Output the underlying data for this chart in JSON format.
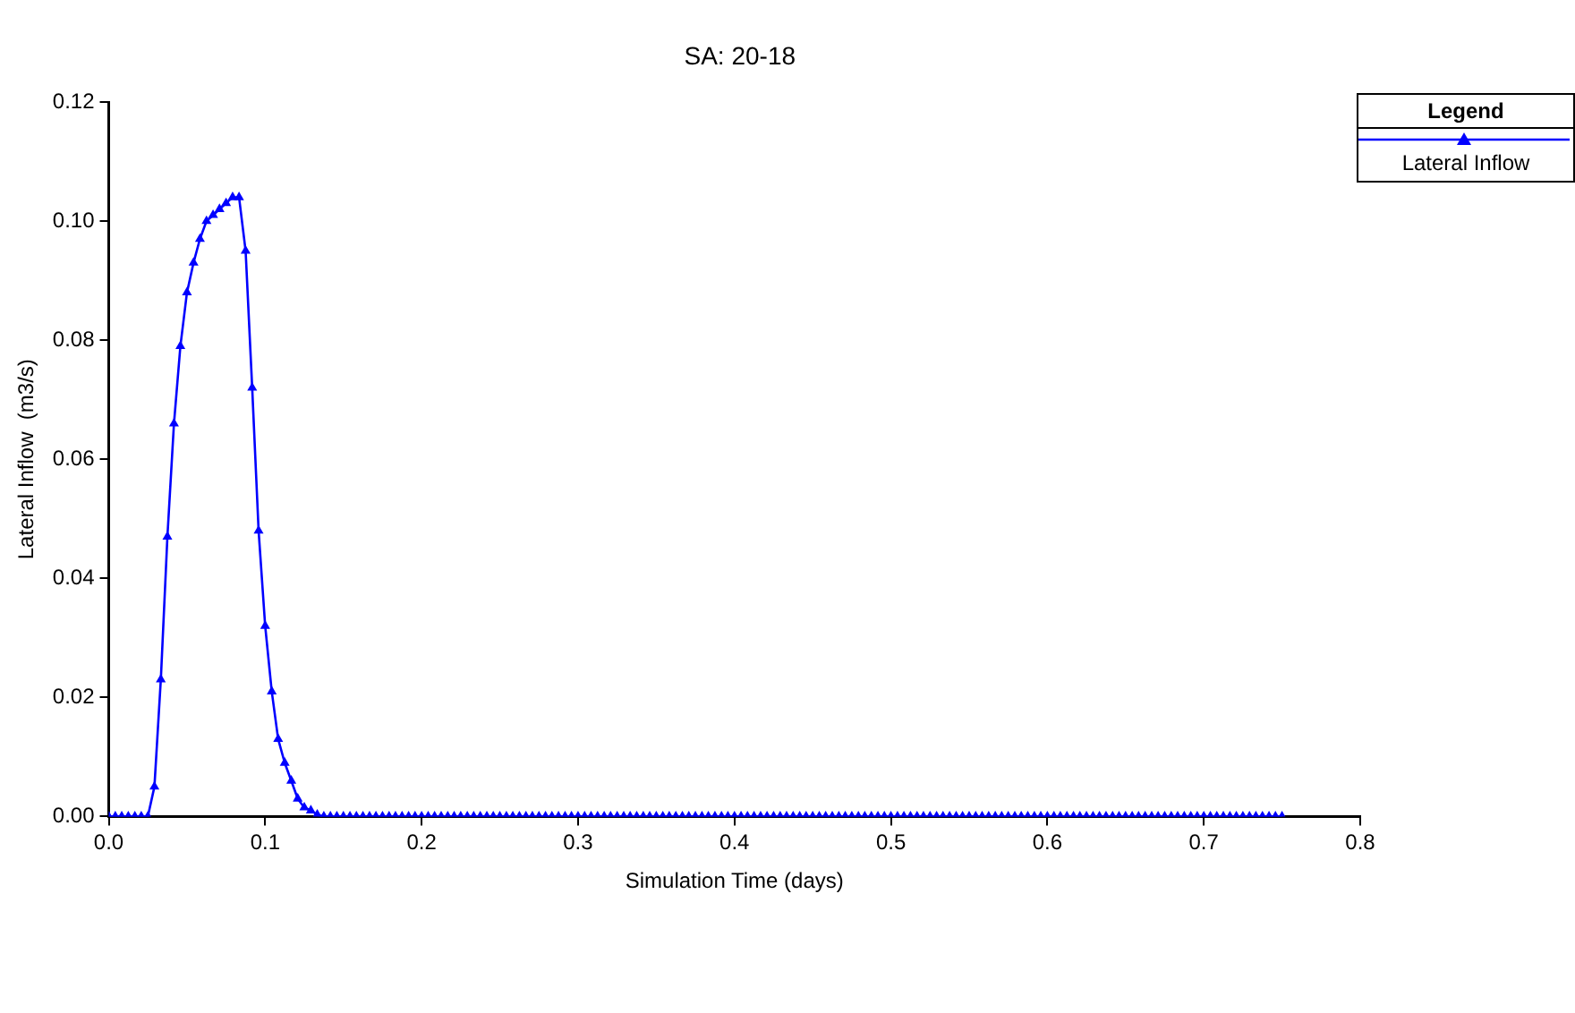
{
  "chart_data": {
    "type": "line",
    "title": "SA: 20-18",
    "xlabel": "Simulation Time (days)",
    "ylabel": "Lateral Inflow  (m3/s)",
    "legend_title": "Legend",
    "legend": "top right",
    "marker": "triangle",
    "line_style": "solid",
    "grid": false,
    "xlim": [
      0,
      0.8
    ],
    "xticks": [
      {
        "value": 0,
        "label": "0.0"
      },
      {
        "value": 0.1,
        "label": "0.1"
      },
      {
        "value": 0.2,
        "label": "0.2"
      },
      {
        "value": 0.3,
        "label": "0.3"
      },
      {
        "value": 0.4,
        "label": "0.4"
      },
      {
        "value": 0.5,
        "label": "0.5"
      },
      {
        "value": 0.6,
        "label": "0.6"
      },
      {
        "value": 0.7,
        "label": "0.7"
      },
      {
        "value": 0.8,
        "label": "0.8"
      }
    ],
    "ylim": [
      0,
      0.12
    ],
    "yticks": [
      {
        "value": 0,
        "label": "0.00"
      },
      {
        "value": 0.02,
        "label": "0.02"
      },
      {
        "value": 0.04,
        "label": "0.04"
      },
      {
        "value": 0.06,
        "label": "0.06"
      },
      {
        "value": 0.08,
        "label": "0.08"
      },
      {
        "value": 0.1,
        "label": "0.10"
      },
      {
        "value": 0.12,
        "label": "0.12"
      }
    ],
    "x": [
      0,
      0.0042,
      0.0083,
      0.0125,
      0.0167,
      0.0208,
      0.025,
      0.0292,
      0.0333,
      0.0375,
      0.0417,
      0.0458,
      0.05,
      0.0542,
      0.0583,
      0.0625,
      0.0667,
      0.0708,
      0.075,
      0.0792,
      0.0833,
      0.0875,
      0.0917,
      0.0958,
      0.1,
      0.1042,
      0.1083,
      0.1125,
      0.1167,
      0.1208,
      0.125,
      0.1292,
      0.1333,
      0.1375,
      0.1417,
      0.1458,
      0.15,
      0.1542,
      0.1583,
      0.1625,
      0.1667,
      0.1708,
      0.175,
      0.1792,
      0.1833,
      0.1875,
      0.1917,
      0.1958,
      0.2,
      0.2042,
      0.2083,
      0.2125,
      0.2167,
      0.2208,
      0.225,
      0.2292,
      0.2333,
      0.2375,
      0.2417,
      0.2458,
      0.25,
      0.2542,
      0.2583,
      0.2625,
      0.2667,
      0.2708,
      0.275,
      0.2792,
      0.2833,
      0.2875,
      0.2917,
      0.2958,
      0.3,
      0.3042,
      0.3083,
      0.3125,
      0.3167,
      0.3208,
      0.325,
      0.3292,
      0.3333,
      0.3375,
      0.3417,
      0.3458,
      0.35,
      0.3542,
      0.3583,
      0.3625,
      0.3667,
      0.3708,
      0.375,
      0.3792,
      0.3833,
      0.3875,
      0.3917,
      0.3958,
      0.4,
      0.4042,
      0.4083,
      0.4125,
      0.4167,
      0.4208,
      0.425,
      0.4292,
      0.4333,
      0.4375,
      0.4417,
      0.4458,
      0.45,
      0.4542,
      0.4583,
      0.4625,
      0.4667,
      0.4708,
      0.475,
      0.4792,
      0.4833,
      0.4875,
      0.4917,
      0.4958,
      0.5,
      0.5042,
      0.5083,
      0.5125,
      0.5167,
      0.5208,
      0.525,
      0.5292,
      0.5333,
      0.5375,
      0.5417,
      0.5458,
      0.55,
      0.5542,
      0.5583,
      0.5625,
      0.5667,
      0.5708,
      0.575,
      0.5792,
      0.5833,
      0.5875,
      0.5917,
      0.5958,
      0.6,
      0.6042,
      0.6083,
      0.6125,
      0.6167,
      0.6208,
      0.625,
      0.6292,
      0.6333,
      0.6375,
      0.6417,
      0.6458,
      0.65,
      0.6542,
      0.6583,
      0.6625,
      0.6667,
      0.6708,
      0.675,
      0.6792,
      0.6833,
      0.6875,
      0.6917,
      0.6958,
      0.7,
      0.7042,
      0.7083,
      0.7125,
      0.7167,
      0.7208,
      0.725,
      0.7292,
      0.7333,
      0.7375,
      0.7417,
      0.7458,
      0.75
    ],
    "series": [
      {
        "name": "Lateral Inflow",
        "color": "#0000ff",
        "values": [
          0,
          0,
          0,
          0,
          0,
          0,
          0,
          0.005,
          0.023,
          0.047,
          0.066,
          0.079,
          0.088,
          0.093,
          0.097,
          0.1,
          0.101,
          0.102,
          0.103,
          0.104,
          0.104,
          0.095,
          0.072,
          0.048,
          0.032,
          0.021,
          0.013,
          0.009,
          0.006,
          0.003,
          0.0015,
          0.001,
          0.0003,
          0,
          0,
          0,
          0,
          0,
          0,
          0,
          0,
          0,
          0,
          0,
          0,
          0,
          0,
          0,
          0,
          0,
          0,
          0,
          0,
          0,
          0,
          0,
          0,
          0,
          0,
          0,
          0,
          0,
          0,
          0,
          0,
          0,
          0,
          0,
          0,
          0,
          0,
          0,
          0,
          0,
          0,
          0,
          0,
          0,
          0,
          0,
          0,
          0,
          0,
          0,
          0,
          0,
          0,
          0,
          0,
          0,
          0,
          0,
          0,
          0,
          0,
          0,
          0,
          0,
          0,
          0,
          0,
          0,
          0,
          0,
          0,
          0,
          0,
          0,
          0,
          0,
          0,
          0,
          0,
          0,
          0,
          0,
          0,
          0,
          0,
          0,
          0,
          0,
          0,
          0,
          0,
          0,
          0,
          0,
          0,
          0,
          0,
          0,
          0,
          0,
          0,
          0,
          0,
          0,
          0,
          0,
          0,
          0,
          0,
          0,
          0,
          0,
          0,
          0,
          0,
          0,
          0,
          0,
          0,
          0,
          0,
          0,
          0,
          0,
          0,
          0,
          0,
          0,
          0,
          0,
          0,
          0,
          0,
          0,
          0,
          0,
          0,
          0,
          0,
          0,
          0,
          0,
          0,
          0,
          0,
          0,
          0
        ]
      }
    ]
  }
}
